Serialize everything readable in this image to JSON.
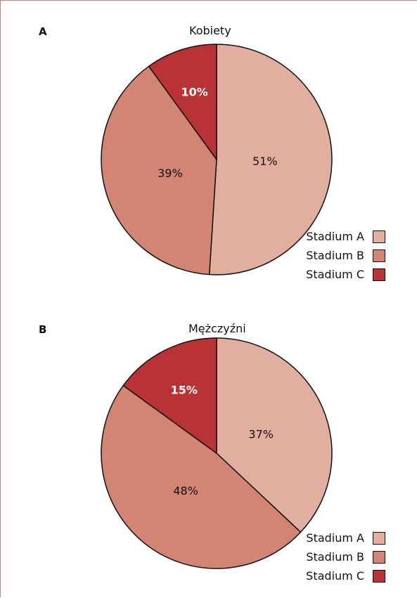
{
  "colors": {
    "stadium_a": "#e2aea0",
    "stadium_b": "#d38574",
    "stadium_c": "#b93236"
  },
  "chart_data": [
    {
      "type": "pie",
      "panel": "A",
      "title": "Kobiety",
      "labels": [
        "Stadium A",
        "Stadium B",
        "Stadium C"
      ],
      "values": [
        51,
        39,
        10
      ],
      "value_labels": [
        "51%",
        "39%",
        "10%"
      ],
      "colors": [
        "#e2aea0",
        "#d38574",
        "#b93236"
      ],
      "legend": {
        "position": "bottom-right",
        "entries": [
          "Stadium A",
          "Stadium B",
          "Stadium C"
        ]
      }
    },
    {
      "type": "pie",
      "panel": "B",
      "title": "Mężczyźni",
      "labels": [
        "Stadium A",
        "Stadium B",
        "Stadium C"
      ],
      "values": [
        37,
        48,
        15
      ],
      "value_labels": [
        "37%",
        "48%",
        "15%"
      ],
      "colors": [
        "#e2aea0",
        "#d38574",
        "#b93236"
      ],
      "legend": {
        "position": "bottom-right",
        "entries": [
          "Stadium A",
          "Stadium B",
          "Stadium C"
        ]
      }
    }
  ]
}
